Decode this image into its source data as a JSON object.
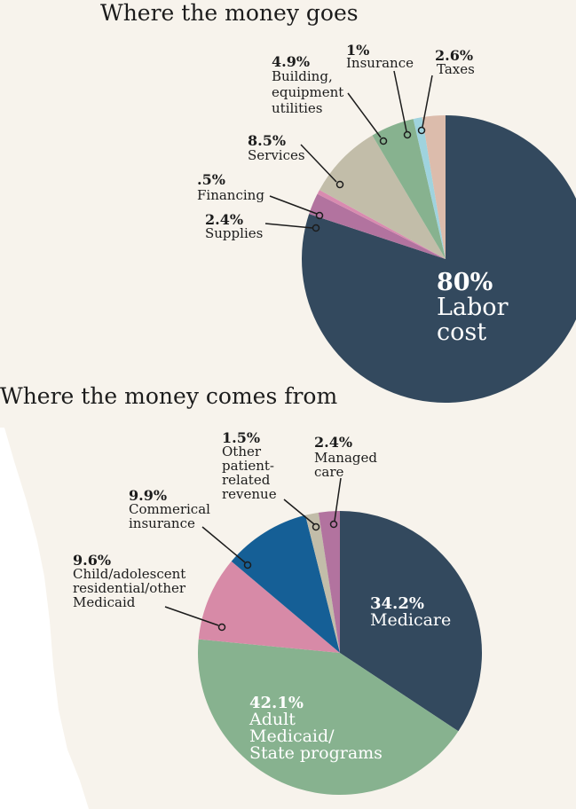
{
  "chart_data": [
    {
      "type": "pie",
      "title": "Where the money goes",
      "slices": [
        {
          "pct_label": "80%",
          "label": "Labor cost",
          "value": 80,
          "color": "#33495e"
        },
        {
          "pct_label": "2.4%",
          "label": "Supplies",
          "value": 2.4,
          "color": "#b2739f"
        },
        {
          "pct_label": ".5%",
          "label": "Financing",
          "value": 0.5,
          "color": "#d98bb0"
        },
        {
          "pct_label": "8.5%",
          "label": "Services",
          "value": 8.5,
          "color": "#c2bda9"
        },
        {
          "pct_label": "4.9%",
          "label": "Building, equipment utilities",
          "value": 4.9,
          "color": "#87b28f"
        },
        {
          "pct_label": "1%",
          "label": "Insurance",
          "value": 1,
          "color": "#9fd3de"
        },
        {
          "pct_label": "2.6%",
          "label": "Taxes",
          "value": 2.6,
          "color": "#dcbcac"
        }
      ]
    },
    {
      "type": "pie",
      "title": "Where the money comes from",
      "slices": [
        {
          "pct_label": "34.2%",
          "label": "Medicare",
          "value": 34.2,
          "color": "#33495e"
        },
        {
          "pct_label": "42.1%",
          "label": "Adult Medicaid/ State programs",
          "value": 42.1,
          "color": "#87b28f"
        },
        {
          "pct_label": "9.6%",
          "label": "Child/adolescent residential/other Medicaid",
          "value": 9.6,
          "color": "#d78aa7"
        },
        {
          "pct_label": "9.9%",
          "label": "Commerical insurance",
          "value": 9.9,
          "color": "#155f96"
        },
        {
          "pct_label": "1.5%",
          "label": "Other patient-related revenue",
          "value": 1.5,
          "color": "#c2bda9"
        },
        {
          "pct_label": "2.4%",
          "label": "Managed care",
          "value": 2.4,
          "color": "#b2739f"
        }
      ]
    }
  ]
}
